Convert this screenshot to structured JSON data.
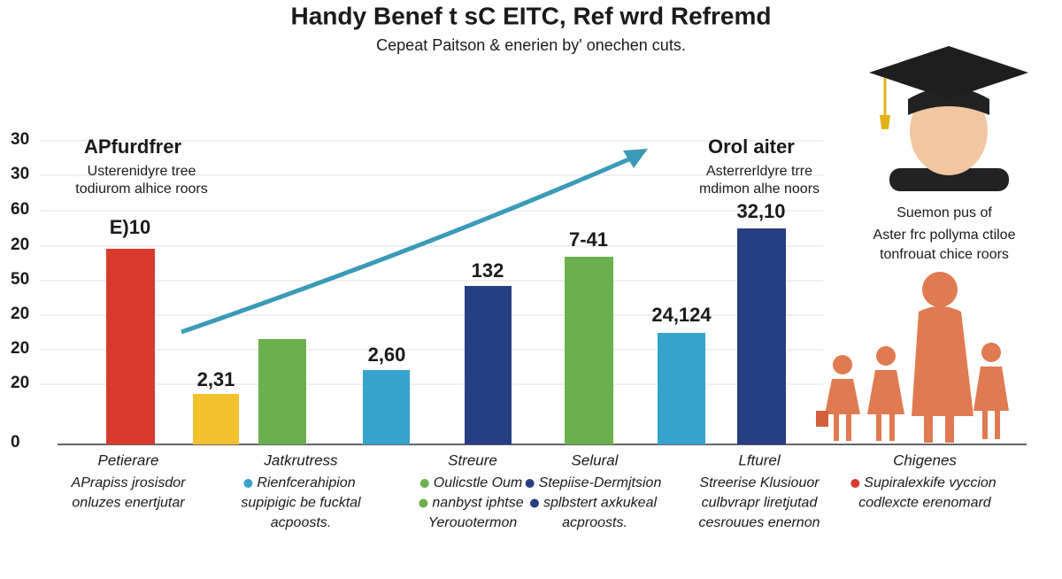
{
  "header": {
    "title": "Handy Benef t sC EITC, Ref wrd Refremd",
    "subtitle": "Cepeat Paitson & enerien by' onechen cuts."
  },
  "axis_labels": [
    "30",
    "30",
    "60",
    "20",
    "50",
    "20",
    "20",
    "20",
    "0"
  ],
  "bar_labels": [
    "E)10",
    "2,31",
    "2,60",
    "132",
    "7-41",
    "24,124",
    "32,10"
  ],
  "annotations": {
    "left": {
      "title": "APfurdfrer",
      "lines": [
        "Usterenidyre tree",
        "todiurom alhice roors"
      ]
    },
    "right": {
      "title": "Orol aiter",
      "lines": [
        "Asterrerldyre trre",
        "mdimon alhe noors"
      ]
    },
    "side": {
      "lines": [
        "Suemon pus of",
        "Aster frc pollyma ctiloe",
        "tonfrouat chice roors"
      ]
    }
  },
  "columns": [
    {
      "heading": "Petierare",
      "items": [
        "APrapiss jrosisdor",
        "onluzes enertjutar"
      ]
    },
    {
      "heading": "Jatkrutress",
      "items": [
        "Rienfcerahipion",
        "supipigic be fucktal",
        "acpoosts."
      ]
    },
    {
      "heading": "Streure",
      "items": [
        "Oulicstle Oum",
        "nanbyst iphtse",
        "Yerouotermon"
      ]
    },
    {
      "heading": "Selural",
      "items": [
        "Stepiise-Dermjtsion",
        "splbstert axkukeal",
        "acproosts."
      ]
    },
    {
      "heading": "Lfturel",
      "items": [
        "Streerise Klusiouor",
        "culbvrapr liretjutad",
        "cesrouues enernon"
      ]
    },
    {
      "heading": "Chigenes",
      "items": [
        "Supiralexkife vyccion",
        "codlexcte erenomard"
      ]
    }
  ]
}
